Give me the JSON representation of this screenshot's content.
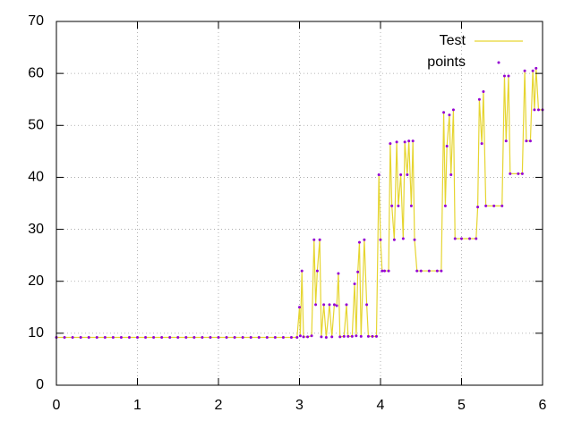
{
  "chart_data": {
    "type": "line",
    "x": [
      0,
      0.1,
      0.2,
      0.3,
      0.4,
      0.5,
      0.6,
      0.7,
      0.8,
      0.9,
      1,
      1.1,
      1.2,
      1.3,
      1.4,
      1.5,
      1.6,
      1.7,
      1.8,
      1.9,
      2,
      2.1,
      2.2,
      2.3,
      2.4,
      2.5,
      2.6,
      2.7,
      2.8,
      2.9,
      2.97,
      3,
      3.01,
      3.03,
      3.05,
      3.1,
      3.15,
      3.18,
      3.2,
      3.22,
      3.25,
      3.27,
      3.3,
      3.33,
      3.37,
      3.4,
      3.43,
      3.46,
      3.48,
      3.5,
      3.55,
      3.58,
      3.6,
      3.65,
      3.68,
      3.7,
      3.72,
      3.74,
      3.76,
      3.8,
      3.83,
      3.85,
      3.9,
      3.95,
      3.98,
      4,
      4.02,
      4.05,
      4.1,
      4.12,
      4.14,
      4.17,
      4.2,
      4.22,
      4.25,
      4.28,
      4.3,
      4.33,
      4.35,
      4.38,
      4.4,
      4.42,
      4.45,
      4.5,
      4.6,
      4.7,
      4.75,
      4.78,
      4.8,
      4.82,
      4.85,
      4.87,
      4.9,
      4.92,
      5,
      5.1,
      5.18,
      5.2,
      5.22,
      5.25,
      5.27,
      5.3,
      5.4,
      5.5,
      5.53,
      5.55,
      5.58,
      5.6,
      5.7,
      5.75,
      5.78,
      5.8,
      5.85,
      5.88,
      5.9,
      5.92,
      5.95,
      6
    ],
    "series": [
      {
        "name": "Test",
        "color": "#e6d530",
        "style": "lines",
        "values": [
          9.2,
          9.2,
          9.2,
          9.2,
          9.2,
          9.2,
          9.2,
          9.2,
          9.2,
          9.2,
          9.2,
          9.2,
          9.2,
          9.2,
          9.2,
          9.2,
          9.2,
          9.2,
          9.2,
          9.2,
          9.2,
          9.2,
          9.2,
          9.2,
          9.2,
          9.2,
          9.2,
          9.2,
          9.2,
          9.2,
          9.2,
          15,
          9.5,
          22,
          9.3,
          9.3,
          9.5,
          28,
          15.5,
          22,
          28,
          9.3,
          15.5,
          9.2,
          15.5,
          9.3,
          15.5,
          15.3,
          21.5,
          9.3,
          9.4,
          15.5,
          9.4,
          9.4,
          19.5,
          9.5,
          21.8,
          27.5,
          9.4,
          28,
          15.5,
          9.4,
          9.4,
          9.4,
          40.5,
          28,
          22,
          22,
          22,
          46.5,
          34.5,
          28,
          46.8,
          34.5,
          40.5,
          28.2,
          46.8,
          40.5,
          47,
          34.5,
          47,
          28,
          22,
          22,
          22,
          22,
          22,
          52.5,
          34.5,
          46,
          52,
          40.5,
          53,
          28.2,
          28.2,
          28.2,
          28.2,
          34.3,
          55,
          46.5,
          56.5,
          34.5,
          34.5,
          34.5,
          59.5,
          47,
          59.5,
          40.7,
          40.7,
          40.7,
          60.5,
          47,
          47,
          60.5,
          53,
          61,
          53,
          53
        ]
      },
      {
        "name": "points",
        "color": "#9400d3",
        "style": "points",
        "values": [
          9.2,
          9.2,
          9.2,
          9.2,
          9.2,
          9.2,
          9.2,
          9.2,
          9.2,
          9.2,
          9.2,
          9.2,
          9.2,
          9.2,
          9.2,
          9.2,
          9.2,
          9.2,
          9.2,
          9.2,
          9.2,
          9.2,
          9.2,
          9.2,
          9.2,
          9.2,
          9.2,
          9.2,
          9.2,
          9.2,
          9.2,
          15,
          9.5,
          22,
          9.3,
          9.3,
          9.5,
          28,
          15.5,
          22,
          28,
          9.3,
          15.5,
          9.2,
          15.5,
          9.3,
          15.5,
          15.3,
          21.5,
          9.3,
          9.4,
          15.5,
          9.4,
          9.4,
          19.5,
          9.5,
          21.8,
          27.5,
          9.4,
          28,
          15.5,
          9.4,
          9.4,
          9.4,
          40.5,
          28,
          22,
          22,
          22,
          46.5,
          34.5,
          28,
          46.8,
          34.5,
          40.5,
          28.2,
          46.8,
          40.5,
          47,
          34.5,
          47,
          28,
          22,
          22,
          22,
          22,
          22,
          52.5,
          34.5,
          46,
          52,
          40.5,
          53,
          28.2,
          28.2,
          28.2,
          28.2,
          34.3,
          55,
          46.5,
          56.5,
          34.5,
          34.5,
          34.5,
          59.5,
          47,
          59.5,
          40.7,
          40.7,
          40.7,
          60.5,
          47,
          47,
          60.5,
          53,
          61,
          53,
          53
        ]
      }
    ],
    "xlim": [
      0,
      6
    ],
    "xticks": [
      0,
      1,
      2,
      3,
      4,
      5,
      6
    ],
    "ylim": [
      0,
      70
    ],
    "yticks": [
      0,
      10,
      20,
      30,
      40,
      50,
      60,
      70
    ],
    "grid": true,
    "legend": "top-right"
  }
}
